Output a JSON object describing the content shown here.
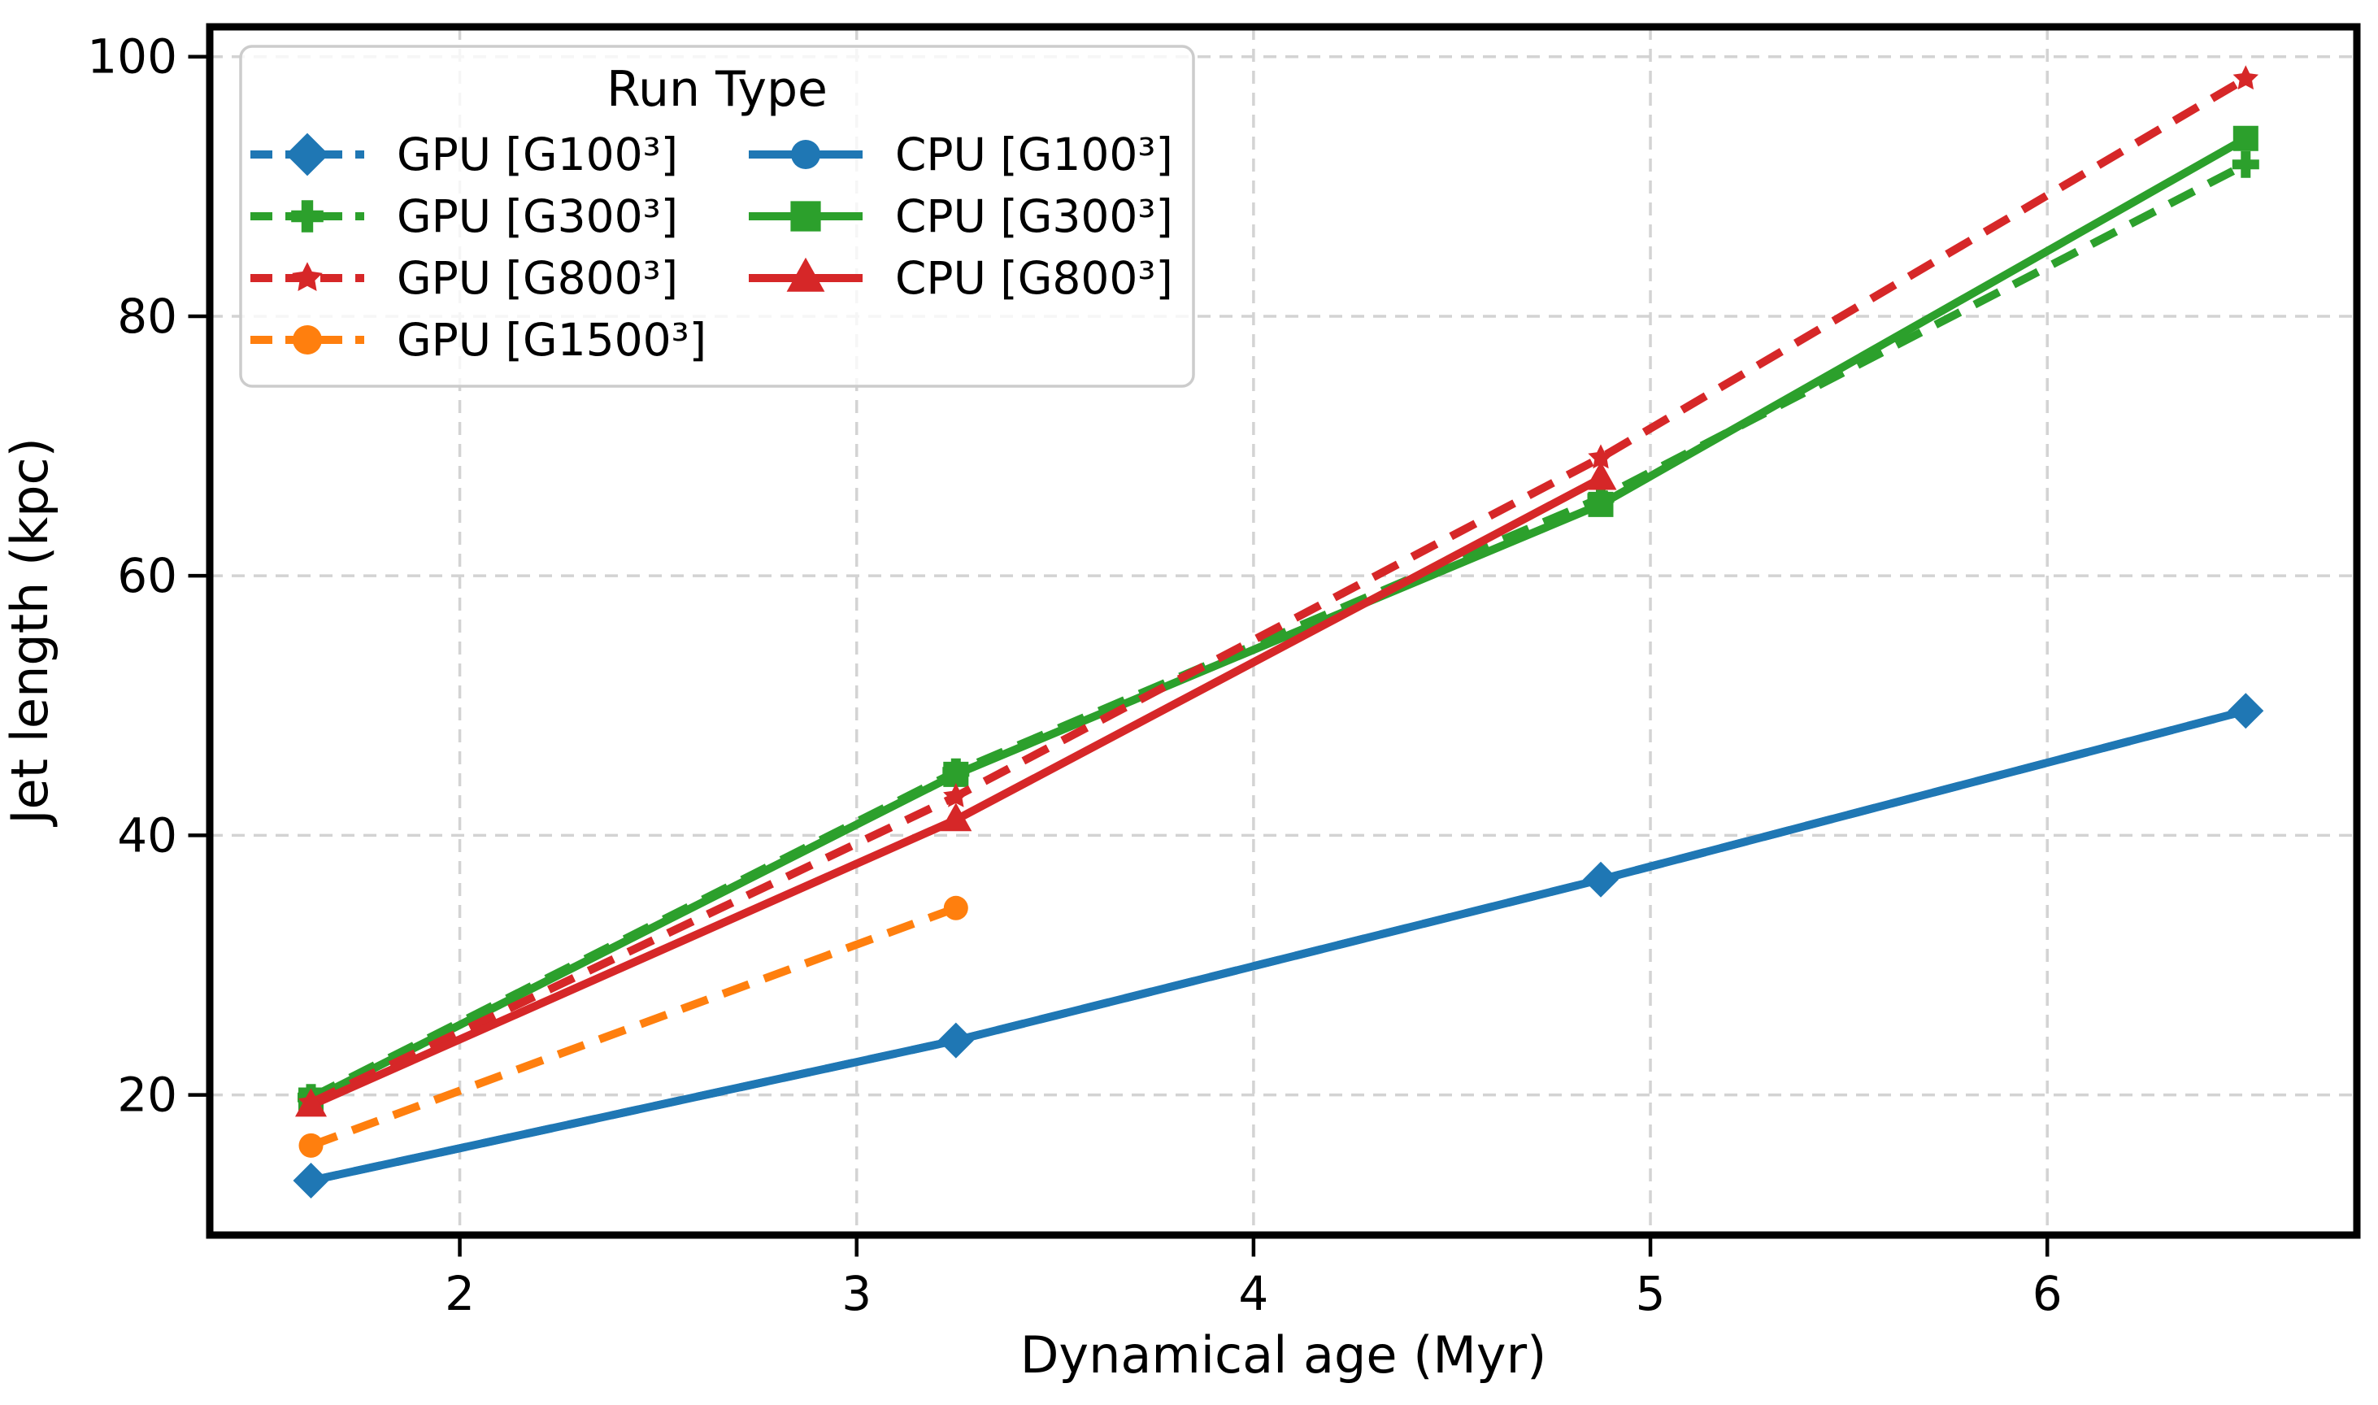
{
  "figure": {
    "background": "#ffffff"
  },
  "chart_data": {
    "type": "line",
    "title": "",
    "xlabel": "Dynamical age (Myr)",
    "ylabel": "Jet length (kpc)",
    "xlim": [
      1.37,
      6.78
    ],
    "ylim": [
      9.2,
      102.3
    ],
    "xticks": [
      2,
      3,
      4,
      5,
      6
    ],
    "yticks": [
      20,
      40,
      60,
      80,
      100
    ],
    "grid": true,
    "grid_color": "#d3d3d3",
    "axis_color": "#000000",
    "legend": {
      "title": "Run Type",
      "position": "upper-left",
      "columns": [
        [
          "gpu-g100",
          "gpu-g300",
          "gpu-g800",
          "gpu-g1500"
        ],
        [
          "cpu-g100",
          "cpu-g300",
          "cpu-g800"
        ]
      ]
    },
    "series": [
      {
        "name": "GPU [G100³]",
        "slug": "gpu-g100",
        "color": "#1f77b4",
        "line": "dashed",
        "marker": "diamond",
        "x": [
          1.625,
          3.25,
          4.875,
          6.5
        ],
        "y": [
          13.4,
          24.2,
          36.6,
          49.6
        ]
      },
      {
        "name": "CPU [G100³]",
        "slug": "cpu-g100",
        "color": "#1f77b4",
        "line": "solid",
        "marker": "circle",
        "x": [
          1.625,
          3.25,
          4.875,
          6.5
        ],
        "y": [
          13.4,
          24.2,
          36.6,
          49.6
        ]
      },
      {
        "name": "GPU [G300³]",
        "slug": "gpu-g300",
        "color": "#2ca02c",
        "line": "dashed",
        "marker": "plus",
        "x": [
          1.625,
          3.25,
          4.875,
          6.5
        ],
        "y": [
          19.8,
          44.9,
          66.0,
          91.7
        ]
      },
      {
        "name": "CPU [G300³]",
        "slug": "cpu-g300",
        "color": "#2ca02c",
        "line": "solid",
        "marker": "square",
        "x": [
          1.625,
          3.25,
          4.875,
          6.5
        ],
        "y": [
          19.6,
          44.7,
          65.5,
          93.7
        ]
      },
      {
        "name": "GPU [G800³]",
        "slug": "gpu-g800",
        "color": "#d62728",
        "line": "dashed",
        "marker": "star",
        "x": [
          1.625,
          3.25,
          4.875,
          6.5
        ],
        "y": [
          19.4,
          43.0,
          69.1,
          98.3
        ]
      },
      {
        "name": "CPU [G800³]",
        "slug": "cpu-g800",
        "color": "#d62728",
        "line": "solid",
        "marker": "triangle",
        "x": [
          1.625,
          3.25,
          4.875
        ],
        "y": [
          19.2,
          41.2,
          67.5
        ]
      },
      {
        "name": "GPU [G1500³]",
        "slug": "gpu-g1500",
        "color": "#ff7f0e",
        "line": "dashed",
        "marker": "circle",
        "x": [
          1.625,
          3.25
        ],
        "y": [
          16.1,
          34.4
        ]
      }
    ]
  }
}
